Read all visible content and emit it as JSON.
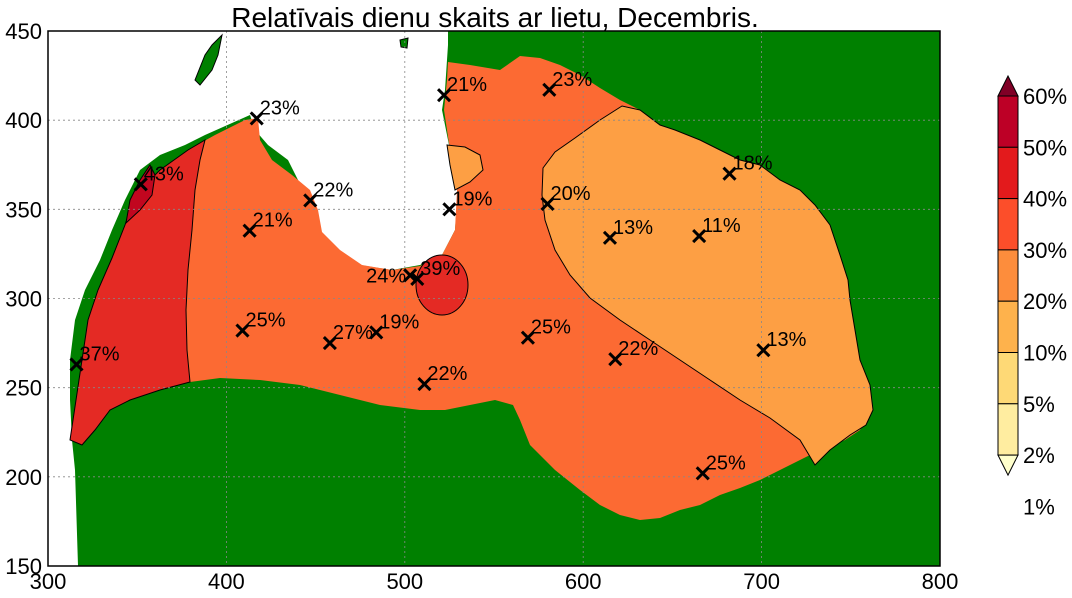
{
  "title": "Relatīvais dienu skaits ar lietu, Decembris.",
  "axes": {
    "xlim": [
      300,
      800
    ],
    "ylim": [
      150,
      450
    ],
    "x_ticks": [
      "300",
      "400",
      "500",
      "600",
      "700",
      "800"
    ],
    "y_ticks": [
      "150",
      "200",
      "250",
      "300",
      "350",
      "400",
      "450"
    ],
    "grid": true
  },
  "colors": {
    "land_outside": "#008000",
    "sea": "#ffffff",
    "level_10_20": "#fd9f44",
    "level_20_30": "#fc6a33",
    "level_30_40": "#e42a24",
    "level_40_50": "#c1061f"
  },
  "colorbar": {
    "labels": [
      "60%",
      "50%",
      "40%",
      "30%",
      "20%",
      "10%",
      "5%",
      "2%",
      "1%"
    ],
    "colors": [
      "#800026",
      "#bd0026",
      "#e31a1c",
      "#fc4e2a",
      "#fd8d3c",
      "#feb24c",
      "#fed976",
      "#ffeda0",
      "#ffffcc"
    ]
  },
  "stations": [
    {
      "x": 316,
      "y": 263,
      "label": "37%"
    },
    {
      "x": 352,
      "y": 364,
      "label": "43%"
    },
    {
      "x": 413,
      "y": 338,
      "label": "21%"
    },
    {
      "x": 417,
      "y": 401,
      "label": "23%"
    },
    {
      "x": 447,
      "y": 355,
      "label": "22%"
    },
    {
      "x": 409,
      "y": 282,
      "label": "25%"
    },
    {
      "x": 458,
      "y": 275,
      "label": "27%"
    },
    {
      "x": 484,
      "y": 281,
      "label": "19%"
    },
    {
      "x": 503,
      "y": 313,
      "label": "24%"
    },
    {
      "x": 507,
      "y": 311,
      "label": "39%"
    },
    {
      "x": 511,
      "y": 252,
      "label": "22%"
    },
    {
      "x": 522,
      "y": 414,
      "label": "21%"
    },
    {
      "x": 525,
      "y": 350,
      "label": "19%"
    },
    {
      "x": 569,
      "y": 278,
      "label": "25%"
    },
    {
      "x": 581,
      "y": 417,
      "label": "23%"
    },
    {
      "x": 580,
      "y": 353,
      "label": "20%"
    },
    {
      "x": 615,
      "y": 334,
      "label": "13%"
    },
    {
      "x": 618,
      "y": 266,
      "label": "22%"
    },
    {
      "x": 665,
      "y": 335,
      "label": "11%"
    },
    {
      "x": 682,
      "y": 370,
      "label": "18%"
    },
    {
      "x": 667,
      "y": 202,
      "label": "25%"
    },
    {
      "x": 701,
      "y": 271,
      "label": "13%"
    }
  ]
}
